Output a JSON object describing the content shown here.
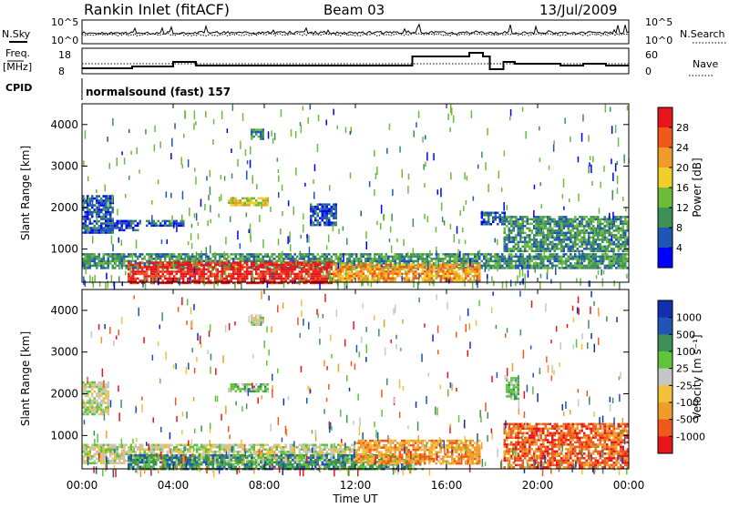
{
  "header": {
    "title": "Rankin Inlet (fitACF)",
    "beam": "Beam 03",
    "date": "13/Jul/2009"
  },
  "noise_panel": {
    "left_label": "N.Sky",
    "right_label": "N.Search",
    "ticks": [
      "10^5",
      "10^0"
    ]
  },
  "freq_panel": {
    "left_label": "Freq.",
    "unit": "[MHz]",
    "left_ticks": [
      "18",
      "8"
    ],
    "right_ticks": [
      "60",
      "0"
    ],
    "right_label": "Nave"
  },
  "cpid": {
    "label": "CPID",
    "value": "normalsound (fast) 157"
  },
  "colors": {
    "power": [
      "#0000ff",
      "#1f55b5",
      "#3e9156",
      "#6dbb3a",
      "#f0cf2a",
      "#ef9c2a",
      "#ef5a1c",
      "#e8161b"
    ],
    "velocity": [
      "#e8161b",
      "#ef5a1c",
      "#ef9c2a",
      "#f3c03b",
      "#c6c6c6",
      "#5ec53a",
      "#3e9156",
      "#1f55b5",
      "#1030b0"
    ]
  },
  "chart_data": [
    {
      "type": "heatmap",
      "name": "power",
      "ylabel": "Slant Range [km]",
      "y_ticks": [
        "1000",
        "2000",
        "3000",
        "4000"
      ],
      "ylim": [
        200,
        4500
      ],
      "xlim_hours": [
        0,
        24
      ],
      "colorbar_label": "Power [dB]",
      "colorbar_ticks": [
        "4",
        "8",
        "12",
        "16",
        "20",
        "24",
        "28"
      ],
      "bands": [
        {
          "t0": 0.0,
          "t1": 1.4,
          "r0": 1400,
          "r1": 2300,
          "lvl": 1
        },
        {
          "t0": 1.0,
          "t1": 2.6,
          "r0": 1450,
          "r1": 1700,
          "lvl": 1
        },
        {
          "t0": 2.8,
          "t1": 4.5,
          "r0": 1550,
          "r1": 1700,
          "lvl": 1
        },
        {
          "t0": 6.4,
          "t1": 8.2,
          "r0": 2050,
          "r1": 2250,
          "lvl": 4
        },
        {
          "t0": 7.4,
          "t1": 8.0,
          "r0": 3650,
          "r1": 3900,
          "lvl": 2
        },
        {
          "t0": 10.0,
          "t1": 11.2,
          "r0": 1600,
          "r1": 2100,
          "lvl": 1
        },
        {
          "t0": 17.5,
          "t1": 18.6,
          "r0": 1600,
          "r1": 1900,
          "lvl": 1
        },
        {
          "t0": 18.5,
          "t1": 24.0,
          "r0": 950,
          "r1": 1800,
          "lvl": 2
        },
        {
          "t0": 0.0,
          "t1": 24.0,
          "r0": 550,
          "r1": 900,
          "lvl": 2
        },
        {
          "t0": 2.0,
          "t1": 11.0,
          "r0": 200,
          "r1": 700,
          "lvl": 7
        },
        {
          "t0": 11.0,
          "t1": 17.5,
          "r0": 250,
          "r1": 650,
          "lvl": 5
        }
      ]
    },
    {
      "type": "heatmap",
      "name": "velocity",
      "ylabel": "Slant Range [km]",
      "y_ticks": [
        "1000",
        "2000",
        "3000",
        "4000"
      ],
      "ylim": [
        200,
        4500
      ],
      "xlabel": "Time UT",
      "x_ticks": [
        "00:00",
        "04:00",
        "08:00",
        "12:00",
        "16:00",
        "20:00",
        "00:00"
      ],
      "xlim_hours": [
        0,
        24
      ],
      "colorbar_label": "Velocity [m s⁻¹]",
      "colorbar_ticks": [
        "1000",
        "500",
        "100",
        "25",
        "-25",
        "-100",
        "-500",
        "-1000"
      ],
      "bands": [
        {
          "t0": 0.0,
          "t1": 1.2,
          "r0": 1500,
          "r1": 2300,
          "lvl": 4
        },
        {
          "t0": 6.4,
          "t1": 8.2,
          "r0": 2050,
          "r1": 2250,
          "lvl": 5
        },
        {
          "t0": 7.4,
          "t1": 8.0,
          "r0": 3650,
          "r1": 3900,
          "lvl": 4
        },
        {
          "t0": 0.0,
          "t1": 12.0,
          "r0": 350,
          "r1": 800,
          "lvl": 4
        },
        {
          "t0": 2.0,
          "t1": 15.0,
          "r0": 200,
          "r1": 550,
          "lvl": 6
        },
        {
          "t0": 12.0,
          "t1": 17.5,
          "r0": 300,
          "r1": 900,
          "lvl": 2
        },
        {
          "t0": 18.5,
          "t1": 24.0,
          "r0": 250,
          "r1": 1300,
          "lvl": 1
        },
        {
          "t0": 18.6,
          "t1": 19.2,
          "r0": 1900,
          "r1": 2400,
          "lvl": 5
        }
      ]
    }
  ]
}
